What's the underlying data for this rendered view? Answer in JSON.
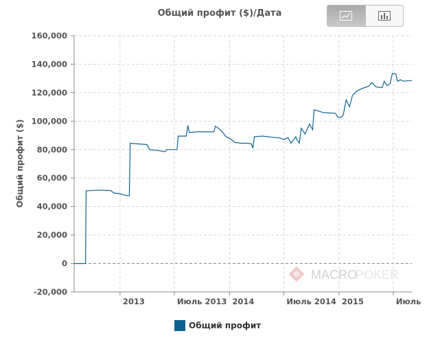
{
  "chart_toggle": {
    "active": "line",
    "buttons": [
      {
        "icon": "line-chart-icon"
      },
      {
        "icon": "bar-chart-icon"
      }
    ]
  },
  "colors": {
    "series": "#0e6291",
    "grid": "#d6d6d6",
    "zero_line": "#888888",
    "text": "#555555"
  },
  "watermark": {
    "text_a": "MACRO",
    "text_b": "POKER"
  },
  "chart_data": {
    "type": "line",
    "title": "Общий профит ($)/Дата",
    "ylabel": "Общий профит ($)",
    "xlabel": "",
    "ylim": [
      -20000,
      160000
    ],
    "yticks": [
      -20000,
      0,
      20000,
      40000,
      60000,
      80000,
      100000,
      120000,
      140000,
      160000
    ],
    "ytick_labels": [
      "-20,000",
      "0",
      "20,000",
      "40,000",
      "60,000",
      "80,000",
      "100,000",
      "120,000",
      "140,000",
      "160,000"
    ],
    "xlim": [
      "2012-08-01",
      "2015-09-01"
    ],
    "xticks": [
      "2013-01-01",
      "2013-07-01",
      "2014-01-01",
      "2014-07-01",
      "2015-01-01",
      "2015-07-01"
    ],
    "xtick_labels": [
      "2013",
      "Июль 2013",
      "2014",
      "Июль 2014",
      "2015",
      "Июль"
    ],
    "grid": true,
    "legend_position": "bottom",
    "series": [
      {
        "name": "Общий профит",
        "color": "#0e6291",
        "points": [
          [
            "2012-08-01",
            0
          ],
          [
            "2012-09-01",
            0
          ],
          [
            "2012-09-08",
            0
          ],
          [
            "2012-09-10",
            51000
          ],
          [
            "2012-10-15",
            51500
          ],
          [
            "2012-12-01",
            51200
          ],
          [
            "2012-12-12",
            49500
          ],
          [
            "2013-01-01",
            49000
          ],
          [
            "2013-01-15",
            48000
          ],
          [
            "2013-02-01",
            47500
          ],
          [
            "2013-02-04",
            84500
          ],
          [
            "2013-03-01",
            84000
          ],
          [
            "2013-04-01",
            83500
          ],
          [
            "2013-04-10",
            80000
          ],
          [
            "2013-05-01",
            79500
          ],
          [
            "2013-06-01",
            78500
          ],
          [
            "2013-06-05",
            80000
          ],
          [
            "2013-07-10",
            80000
          ],
          [
            "2013-07-14",
            89500
          ],
          [
            "2013-08-10",
            89500
          ],
          [
            "2013-08-15",
            97000
          ],
          [
            "2013-08-20",
            92000
          ],
          [
            "2013-09-15",
            92500
          ],
          [
            "2013-10-15",
            92500
          ],
          [
            "2013-11-10",
            92500
          ],
          [
            "2013-11-15",
            96500
          ],
          [
            "2013-11-25",
            95000
          ],
          [
            "2013-12-10",
            92000
          ],
          [
            "2013-12-20",
            89000
          ],
          [
            "2014-01-01",
            88000
          ],
          [
            "2014-01-20",
            85000
          ],
          [
            "2014-02-10",
            84500
          ],
          [
            "2014-03-01",
            84500
          ],
          [
            "2014-03-15",
            84000
          ],
          [
            "2014-03-20",
            81000
          ],
          [
            "2014-03-25",
            89000
          ],
          [
            "2014-04-20",
            89500
          ],
          [
            "2014-05-10",
            89000
          ],
          [
            "2014-06-01",
            88500
          ],
          [
            "2014-06-20",
            88000
          ],
          [
            "2014-07-01",
            87000
          ],
          [
            "2014-07-15",
            88500
          ],
          [
            "2014-07-25",
            84500
          ],
          [
            "2014-08-10",
            89000
          ],
          [
            "2014-08-15",
            86500
          ],
          [
            "2014-08-22",
            84500
          ],
          [
            "2014-08-28",
            95000
          ],
          [
            "2014-09-10",
            91000
          ],
          [
            "2014-09-25",
            98000
          ],
          [
            "2014-10-05",
            94000
          ],
          [
            "2014-10-10",
            108000
          ],
          [
            "2014-11-10",
            106000
          ],
          [
            "2014-12-20",
            105500
          ],
          [
            "2014-12-28",
            103000
          ],
          [
            "2015-01-05",
            102500
          ],
          [
            "2015-01-15",
            104000
          ],
          [
            "2015-01-25",
            115000
          ],
          [
            "2015-02-05",
            110000
          ],
          [
            "2015-02-15",
            118000
          ],
          [
            "2015-03-01",
            121000
          ],
          [
            "2015-03-20",
            123000
          ],
          [
            "2015-04-10",
            124500
          ],
          [
            "2015-04-20",
            127000
          ],
          [
            "2015-05-05",
            124000
          ],
          [
            "2015-05-25",
            123500
          ],
          [
            "2015-06-01",
            128000
          ],
          [
            "2015-06-10",
            125000
          ],
          [
            "2015-06-20",
            126000
          ],
          [
            "2015-06-28",
            133500
          ],
          [
            "2015-07-10",
            133000
          ],
          [
            "2015-07-15",
            128000
          ],
          [
            "2015-07-25",
            129000
          ],
          [
            "2015-08-05",
            128000
          ],
          [
            "2015-08-20",
            128500
          ],
          [
            "2015-09-01",
            128500
          ]
        ]
      }
    ]
  }
}
